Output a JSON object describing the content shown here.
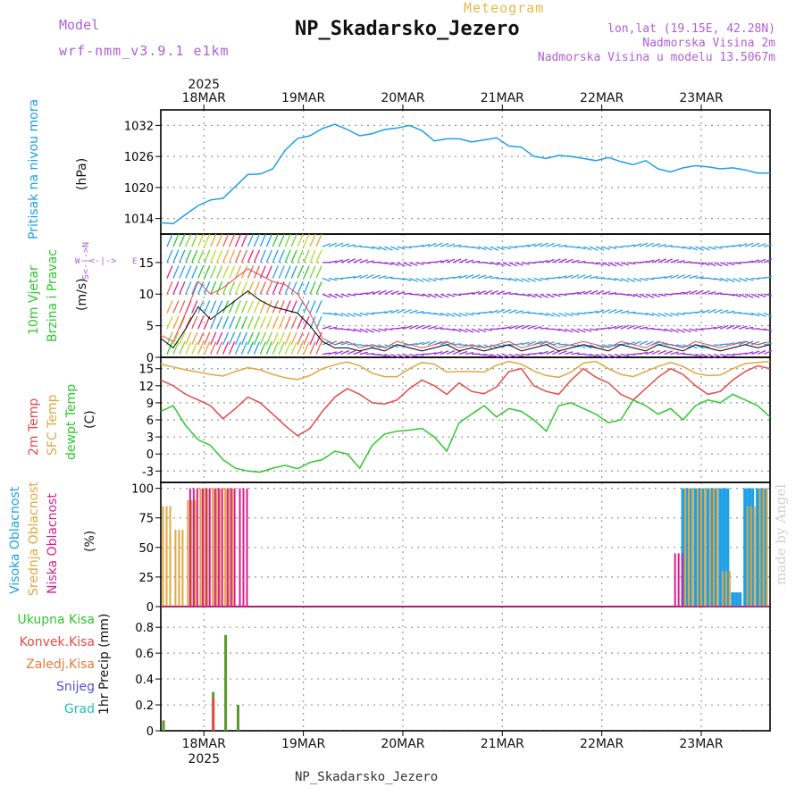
{
  "header": {
    "model_label": "Model",
    "model_name": "wrf-nmm_v3.9.1 e1km",
    "product": "Meteogram",
    "station_title": "NP_Skadarsko_Jezero",
    "coords": "lon,lat (19.15E, 42.28N)",
    "elevation": "Nadmorska Visina 2m",
    "model_elevation": "Nadmorska Visina u modelu 13.5067m"
  },
  "footer": {
    "station": "NP_Skadarsko_Jezero",
    "credit": "made by Angel"
  },
  "colors": {
    "pressure": "#1ea0e6",
    "temp": "#e84848",
    "sfc": "#e0a840",
    "dew": "#2ec82e",
    "grid": "#999999",
    "cloud_high": "#1ea0e6",
    "cloud_mid": "#e0a840",
    "cloud_low": "#d61e8a",
    "precip_total": "#2ec82e",
    "precip_conv": "#e84848"
  },
  "time_axis": {
    "year": "2025",
    "days": [
      "18MAR",
      "19MAR",
      "20MAR",
      "21MAR",
      "22MAR",
      "23MAR"
    ]
  },
  "compass": {
    "n": "N",
    "w": "W",
    "e": "E",
    "s": "S"
  },
  "chart_data": [
    {
      "type": "line",
      "name": "pressure",
      "ylabel": "Pritisak na nivou mora",
      "unit": "(hPa)",
      "ylim": [
        1011,
        1035
      ],
      "yticks": [
        1014,
        1020,
        1026,
        1032
      ],
      "x": [
        0,
        3,
        6,
        9,
        12,
        15,
        18,
        21,
        24,
        27,
        30,
        33,
        36,
        39,
        42,
        45,
        48,
        51,
        54,
        57,
        60,
        63,
        66,
        69,
        72,
        75,
        78,
        81,
        84,
        87,
        90,
        93,
        96,
        99,
        102,
        105,
        108,
        111,
        114,
        117,
        120,
        123,
        126,
        129,
        132,
        135,
        138,
        141,
        144,
        147
      ],
      "series": [
        {
          "values": [
            1013.2,
            1013.0,
            1014.8,
            1016.5,
            1017.6,
            1017.9,
            1020.2,
            1022.5,
            1022.6,
            1023.6,
            1027.2,
            1029.5,
            1030.0,
            1031.4,
            1032.2,
            1031.2,
            1030.0,
            1030.4,
            1031.2,
            1031.5,
            1032.0,
            1031.0,
            1029.0,
            1029.4,
            1029.4,
            1028.8,
            1029.2,
            1029.6,
            1028.0,
            1027.8,
            1026.0,
            1025.6,
            1026.2,
            1026.0,
            1025.6,
            1025.2,
            1025.8,
            1025.0,
            1024.4,
            1025.2,
            1023.6,
            1023.0,
            1023.8,
            1024.2,
            1024.0,
            1023.6,
            1023.8,
            1023.4,
            1022.8,
            1022.8
          ]
        }
      ]
    },
    {
      "type": "line",
      "name": "wind",
      "ylabel": "10m Vjetar Brzina i Pravac",
      "unit": "(m/s)",
      "ylim": [
        0,
        19.5
      ],
      "yticks": [
        0,
        5,
        10,
        15
      ],
      "x": [
        0,
        3,
        6,
        9,
        12,
        15,
        18,
        21,
        24,
        27,
        30,
        33,
        36,
        39,
        42,
        45,
        48,
        51,
        54,
        57,
        60,
        63,
        66,
        69,
        72,
        75,
        78,
        81,
        84,
        87,
        90,
        93,
        96,
        99,
        102,
        105,
        108,
        111,
        114,
        117,
        120,
        123,
        126,
        129,
        132,
        135,
        138,
        141,
        144,
        147
      ],
      "series": [
        {
          "values": [
            3.0,
            1.5,
            4.5,
            8.0,
            6.0,
            7.5,
            9.0,
            10.5,
            9.0,
            8.0,
            7.5,
            7.0,
            5.0,
            2.5,
            1.5,
            1.5,
            1.0,
            1.5,
            1.0,
            2.0,
            1.5,
            1.0,
            1.5,
            2.0,
            1.0,
            1.5,
            1.0,
            1.5,
            2.0,
            1.0,
            1.5,
            2.0,
            1.0,
            1.5,
            2.0,
            1.5,
            1.0,
            2.0,
            1.5,
            1.0,
            2.0,
            1.5,
            1.0,
            2.0,
            1.5,
            1.0,
            1.5,
            2.0,
            1.5,
            2.0
          ]
        },
        {
          "values": [
            3.5,
            2.5,
            7.0,
            12.0,
            10.0,
            11.0,
            12.5,
            14.0,
            13.0,
            12.0,
            11.5,
            10.0,
            7.0,
            3.0,
            2.0,
            2.5,
            1.5,
            2.0,
            1.5,
            2.5,
            2.0,
            1.5,
            2.0,
            2.5,
            1.5,
            2.0,
            1.5,
            2.0,
            2.5,
            1.5,
            2.0,
            2.5,
            1.5,
            2.0,
            2.5,
            2.0,
            1.5,
            2.5,
            2.0,
            1.5,
            2.5,
            2.0,
            1.5,
            2.5,
            2.0,
            1.5,
            2.0,
            2.5,
            2.0,
            2.5
          ]
        }
      ]
    },
    {
      "type": "line",
      "name": "temperature",
      "ylabel": "2m Temp / SFC Temp / dewpt Temp",
      "unit": "(C)",
      "ylim": [
        -5,
        17
      ],
      "yticks": [
        -3,
        0,
        3,
        6,
        9,
        12,
        15
      ],
      "x": [
        0,
        3,
        6,
        9,
        12,
        15,
        18,
        21,
        24,
        27,
        30,
        33,
        36,
        39,
        42,
        45,
        48,
        51,
        54,
        57,
        60,
        63,
        66,
        69,
        72,
        75,
        78,
        81,
        84,
        87,
        90,
        93,
        96,
        99,
        102,
        105,
        108,
        111,
        114,
        117,
        120,
        123,
        126,
        129,
        132,
        135,
        138,
        141,
        144,
        147
      ],
      "series": [
        {
          "name": "2m Temp",
          "values": [
            13.0,
            12.0,
            10.5,
            9.5,
            8.5,
            6.2,
            8.0,
            10.0,
            9.0,
            7.0,
            5.0,
            3.2,
            4.5,
            7.5,
            10.0,
            11.5,
            10.5,
            9.0,
            8.8,
            9.5,
            11.5,
            13.0,
            12.0,
            10.5,
            12.5,
            11.0,
            10.6,
            11.8,
            14.5,
            15.0,
            12.0,
            11.0,
            10.5,
            13.0,
            15.0,
            13.5,
            12.5,
            10.5,
            9.5,
            11.5,
            13.5,
            15.0,
            14.0,
            12.0,
            10.5,
            11.0,
            13.0,
            14.5,
            15.5,
            15.0
          ]
        },
        {
          "name": "SFC Temp",
          "values": [
            15.8,
            15.3,
            14.8,
            14.4,
            14.0,
            13.7,
            14.5,
            15.2,
            14.8,
            14.0,
            13.4,
            13.1,
            13.8,
            15.0,
            15.7,
            16.2,
            15.5,
            14.2,
            13.6,
            13.6,
            15.0,
            16.1,
            15.8,
            14.4,
            14.5,
            14.5,
            14.4,
            15.6,
            16.3,
            15.8,
            14.6,
            13.8,
            13.5,
            14.4,
            16.0,
            16.3,
            15.0,
            14.0,
            13.6,
            14.5,
            15.4,
            16.1,
            15.4,
            14.2,
            13.8,
            13.9,
            15.0,
            15.9,
            16.1,
            16.3
          ]
        },
        {
          "name": "dewpt Temp",
          "values": [
            7.5,
            8.5,
            5.0,
            2.5,
            1.5,
            -1.0,
            -2.5,
            -3.0,
            -3.2,
            -2.5,
            -2.0,
            -2.6,
            -1.5,
            -1.0,
            0.5,
            0.0,
            -2.5,
            1.5,
            3.5,
            4.0,
            4.2,
            4.5,
            3.0,
            0.5,
            5.5,
            7.0,
            8.5,
            6.5,
            8.0,
            7.5,
            6.0,
            4.0,
            8.5,
            9.0,
            8.0,
            7.0,
            5.5,
            6.0,
            9.5,
            8.5,
            7.0,
            8.0,
            6.0,
            8.5,
            9.5,
            9.0,
            10.5,
            9.5,
            8.5,
            6.5
          ]
        }
      ]
    },
    {
      "type": "bar",
      "name": "cloud",
      "ylabel": "Visoka Oblacnost / Srednja Oblacnost / Niska Oblacnost",
      "unit": "(%)",
      "ylim": [
        0,
        105
      ],
      "yticks": [
        0,
        25,
        50,
        75,
        100
      ],
      "x": [
        0,
        3,
        6,
        9,
        12,
        15,
        18,
        21,
        24,
        27,
        30,
        33,
        36,
        39,
        42,
        45,
        48,
        51,
        54,
        57,
        60,
        63,
        66,
        69,
        72,
        75,
        78,
        81,
        84,
        87,
        90,
        93,
        96,
        99,
        102,
        105,
        108,
        111,
        114,
        117,
        120,
        123,
        126,
        129,
        132,
        135,
        138,
        141,
        144,
        147
      ],
      "series": [
        {
          "name": "Visoka Oblacnost",
          "values": [
            0,
            0,
            0,
            0,
            0,
            0,
            0,
            0,
            0,
            0,
            0,
            0,
            0,
            0,
            0,
            0,
            0,
            0,
            0,
            0,
            0,
            0,
            0,
            0,
            0,
            0,
            0,
            0,
            0,
            0,
            0,
            0,
            0,
            0,
            0,
            0,
            0,
            0,
            0,
            0,
            0,
            0,
            100,
            100,
            100,
            100,
            12,
            100,
            100,
            100
          ]
        },
        {
          "name": "Srednja Oblacnost",
          "values": [
            85,
            65,
            90,
            100,
            100,
            100,
            0,
            0,
            0,
            0,
            0,
            0,
            0,
            0,
            0,
            0,
            0,
            0,
            0,
            0,
            0,
            0,
            0,
            0,
            0,
            0,
            0,
            0,
            0,
            0,
            0,
            0,
            0,
            0,
            0,
            0,
            0,
            0,
            0,
            0,
            0,
            0,
            100,
            100,
            100,
            30,
            0,
            85,
            100,
            100
          ]
        },
        {
          "name": "Niska Oblacnost",
          "values": [
            0,
            0,
            100,
            100,
            100,
            100,
            100,
            0,
            0,
            0,
            0,
            0,
            0,
            0,
            0,
            0,
            0,
            0,
            0,
            0,
            0,
            0,
            0,
            0,
            0,
            0,
            0,
            0,
            0,
            0,
            0,
            0,
            0,
            0,
            0,
            0,
            0,
            0,
            0,
            0,
            0,
            45,
            0,
            0,
            0,
            0,
            0,
            0,
            0,
            0
          ]
        }
      ]
    },
    {
      "type": "bar",
      "name": "precip",
      "ylabel": "1hr Precip (mm)",
      "unit": "",
      "ylim": [
        0,
        0.96
      ],
      "yticks": [
        0,
        0.2,
        0.4,
        0.6,
        0.8
      ],
      "x": [
        0,
        3,
        6,
        9,
        12,
        15,
        18,
        21,
        24,
        27,
        30,
        33,
        36,
        39,
        42,
        45,
        48,
        51,
        54,
        57,
        60,
        63,
        66,
        69,
        72,
        75,
        78,
        81,
        84,
        87,
        90,
        93,
        96,
        99,
        102,
        105,
        108,
        111,
        114,
        117,
        120,
        123,
        126,
        129,
        132,
        135,
        138,
        141,
        144,
        147
      ],
      "series": [
        {
          "name": "Ukupna Kisa",
          "values": [
            0.08,
            0,
            0,
            0,
            0.3,
            0.74,
            0.2,
            0,
            0,
            0,
            0,
            0,
            0,
            0,
            0,
            0,
            0,
            0,
            0,
            0,
            0,
            0,
            0,
            0,
            0,
            0,
            0,
            0,
            0,
            0,
            0,
            0,
            0,
            0,
            0,
            0,
            0,
            0,
            0,
            0,
            0,
            0,
            0,
            0,
            0,
            0,
            0,
            0,
            0,
            0
          ]
        },
        {
          "name": "Konvek.Kisa",
          "values": [
            0,
            0,
            0,
            0,
            0.25,
            0,
            0,
            0,
            0,
            0,
            0,
            0,
            0,
            0,
            0,
            0,
            0,
            0,
            0,
            0,
            0,
            0,
            0,
            0,
            0,
            0,
            0,
            0,
            0,
            0,
            0,
            0,
            0,
            0,
            0,
            0,
            0,
            0,
            0,
            0,
            0,
            0,
            0,
            0,
            0,
            0,
            0,
            0,
            0,
            0
          ]
        }
      ],
      "legend": [
        "Ukupna Kisa",
        "Konvek.Kisa",
        "Zaledj.Kisa",
        "Snijeg",
        "Grad"
      ]
    }
  ]
}
